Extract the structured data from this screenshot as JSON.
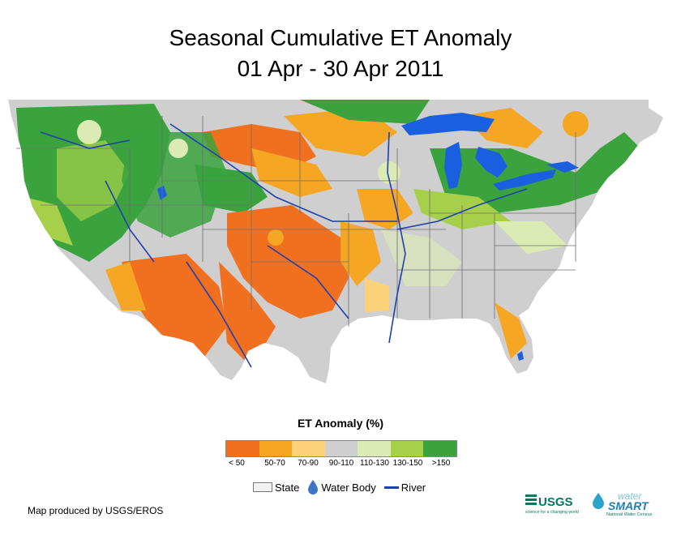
{
  "title": {
    "line1": "Seasonal Cumulative ET Anomaly",
    "line2": "01 Apr - 30 Apr 2011"
  },
  "legend": {
    "title": "ET Anomaly (%)",
    "classes": [
      {
        "label": "< 50",
        "color": "#f07020"
      },
      {
        "label": "50-70",
        "color": "#f5a623"
      },
      {
        "label": "70-90",
        "color": "#fdd17a"
      },
      {
        "label": "90-110",
        "color": "#cfcfcf"
      },
      {
        "label": "110-130",
        "color": "#dcebb4"
      },
      {
        "label": "130-150",
        "color": "#a6d04a"
      },
      {
        "label": ">150",
        "color": "#3aa33e"
      }
    ],
    "symbols": {
      "state": "State",
      "water_body": "Water Body",
      "river": "River"
    }
  },
  "credit": "Map produced by USGS/EROS",
  "logos": {
    "usgs": "USGS",
    "usgs_tagline": "science for a changing world",
    "water": "water",
    "smart": "SMART",
    "ws_tagline": "National Water Census"
  },
  "colors": {
    "water": "#1a5fe0",
    "river": "#1f3fb0",
    "state_line": "#6f6f6f",
    "usgs_green": "#007a5e"
  }
}
